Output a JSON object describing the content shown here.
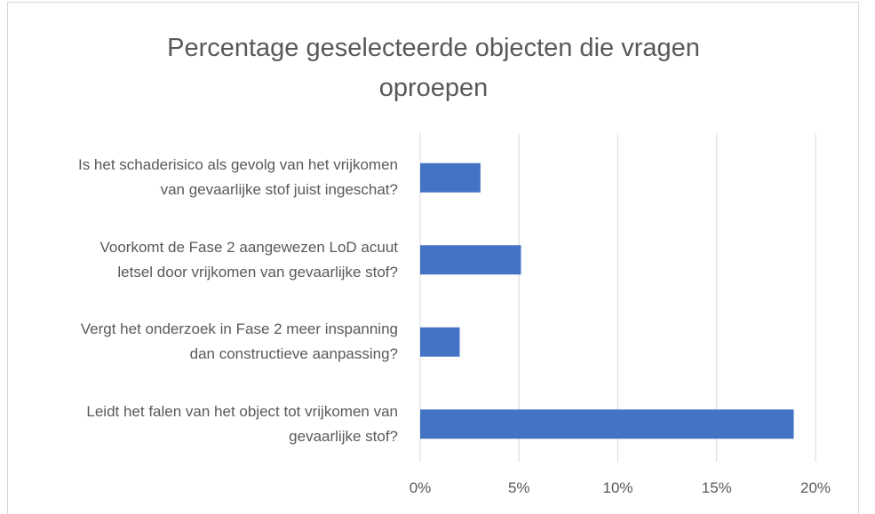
{
  "chart_data": {
    "type": "bar",
    "orientation": "horizontal",
    "title": "Percentage geselecteerde objecten die vragen oproepen",
    "categories": [
      "Is het schaderisico als gevolg van het vrijkomen van gevaarlijke stof juist ingeschat?",
      "Voorkomt de Fase 2 aangewezen LoD acuut letsel door vrijkomen van gevaarlijke stof?",
      "Vergt het onderzoek in Fase 2 meer inspanning dan constructieve aanpassing?",
      "Leidt het falen van het object tot vrijkomen van gevaarlijke stof?"
    ],
    "values": [
      3.05,
      5.1,
      2.0,
      18.9
    ],
    "color": "#4472c4",
    "xlim": [
      0,
      20
    ],
    "xticks": [
      {
        "value": 0,
        "label": "0%"
      },
      {
        "value": 5,
        "label": "5%"
      },
      {
        "value": 10,
        "label": "10%"
      },
      {
        "value": 15,
        "label": "15%"
      },
      {
        "value": 20,
        "label": "20%"
      }
    ],
    "grid": true
  }
}
